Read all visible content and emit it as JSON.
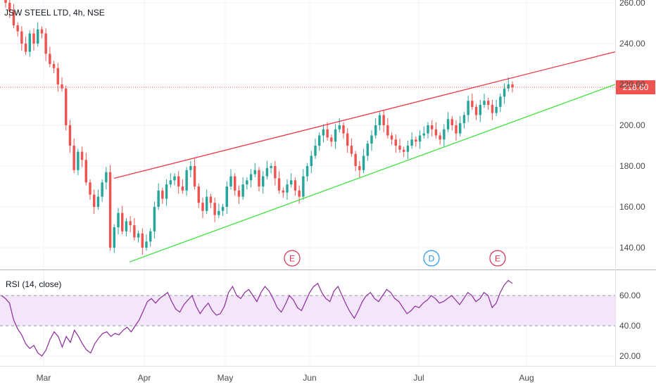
{
  "colors": {
    "up": "#26a69a",
    "down": "#ef5350",
    "resistance": "#f23645",
    "support": "#3ce33c",
    "price_line": "#ef5350",
    "rsi_line": "#8e2a9e",
    "rsi_band": "#f3e6fb",
    "event_e": "#d9304f",
    "event_d": "#2196f3",
    "grid": "#f0f3fa",
    "axis_text": "#4a4a4a"
  },
  "chart_data": [
    {
      "type": "candlestick",
      "title": "JSW STEEL LTD, 4h, NSE",
      "x_ticks": [
        "Mar",
        "Apr",
        "May",
        "Jun",
        "Jul",
        "Aug"
      ],
      "y_ticks": [
        "140.00",
        "160.00",
        "180.00",
        "200.00",
        "220.00",
        "240.00",
        "260.00"
      ],
      "ylim": [
        133,
        262
      ],
      "last_price_label": "218.60",
      "last_price": 218.6,
      "closes": [
        260,
        256,
        249,
        246,
        240,
        236,
        245,
        240,
        247,
        245,
        235,
        230,
        228,
        220,
        218,
        200,
        190,
        178,
        187,
        183,
        172,
        166,
        160,
        165,
        172,
        177,
        140,
        150,
        157,
        148,
        153,
        151,
        145,
        147,
        140,
        143,
        148,
        160,
        168,
        164,
        171,
        173,
        175,
        170,
        168,
        178,
        180,
        170,
        162,
        158,
        165,
        162,
        156,
        158,
        160,
        170,
        175,
        168,
        165,
        171,
        173,
        176,
        178,
        170,
        175,
        179,
        180,
        174,
        168,
        167,
        171,
        173,
        168,
        165,
        175,
        180,
        185,
        190,
        195,
        198,
        194,
        192,
        198,
        200,
        196,
        190,
        186,
        180,
        178,
        185,
        191,
        195,
        200,
        205,
        200,
        195,
        193,
        190,
        188,
        187,
        190,
        193,
        192,
        195,
        196,
        200,
        198,
        195,
        193,
        198,
        203,
        200,
        196,
        201,
        205,
        212,
        209,
        205,
        210,
        212,
        210,
        206,
        209,
        214,
        218,
        220,
        218.6
      ],
      "events": [
        {
          "label": "E",
          "x_label": "May 26"
        },
        {
          "label": "D",
          "x_label": "Jul 7"
        },
        {
          "label": "E",
          "x_label": "Jul 30"
        }
      ],
      "trendlines": [
        {
          "name": "resistance",
          "from": {
            "x": "Mar 24",
            "y": 174
          },
          "to": {
            "x": "Aug 25",
            "y": 236
          }
        },
        {
          "name": "support",
          "from": {
            "x": "Mar 29",
            "y": 133
          },
          "to": {
            "x": "Aug 25",
            "y": 220
          }
        }
      ]
    },
    {
      "type": "line",
      "title": "RSI (14, close)",
      "y_ticks": [
        "20.00",
        "40.00",
        "60.00"
      ],
      "ylim": [
        15,
        75
      ],
      "band": [
        40,
        60
      ],
      "values": [
        60,
        58,
        55,
        44,
        38,
        34,
        28,
        25,
        27,
        22,
        20,
        24,
        31,
        36,
        33,
        26,
        33,
        29,
        37,
        33,
        28,
        24,
        22,
        28,
        32,
        35,
        36,
        33,
        35,
        34,
        37,
        39,
        36,
        40,
        44,
        50,
        56,
        58,
        55,
        58,
        60,
        62,
        56,
        51,
        49,
        54,
        57,
        60,
        53,
        48,
        52,
        55,
        50,
        47,
        48,
        53,
        62,
        66,
        60,
        58,
        62,
        64,
        60,
        56,
        62,
        66,
        63,
        58,
        52,
        49,
        54,
        60,
        57,
        52,
        50,
        56,
        62,
        66,
        68,
        62,
        58,
        56,
        63,
        66,
        60,
        54,
        49,
        45,
        50,
        56,
        60,
        62,
        58,
        56,
        60,
        64,
        62,
        58,
        56,
        52,
        48,
        50,
        53,
        52,
        55,
        57,
        60,
        58,
        55,
        56,
        58,
        60,
        57,
        54,
        58,
        62,
        60,
        56,
        58,
        62,
        60,
        52,
        55,
        62,
        67,
        70,
        68
      ]
    }
  ]
}
